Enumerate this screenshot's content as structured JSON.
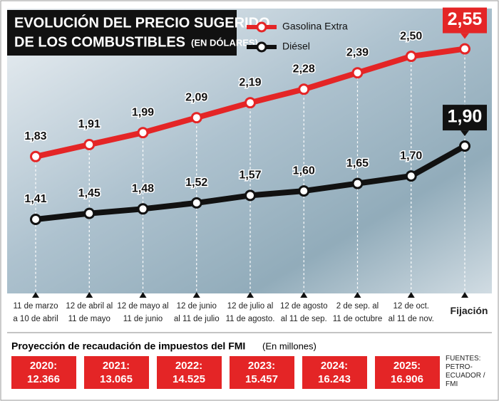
{
  "chart_data": {
    "type": "line",
    "title": "EVOLUCIÓN DEL PRECIO SUGERIDO",
    "title_line2": "DE LOS COMBUSTIBLES",
    "title_note": "(EN DÓLARES)",
    "categories": [
      "11 de marzo\na 10 de abril",
      "12 de abril al\n11 de mayo",
      "12 de mayo al\n11 de junio",
      "12 de junio\nal 11 de julio",
      "12 de julio al\n11 de agosto.",
      "12 de agosto\nal 11 de sep.",
      "2 de sep. al\n11 de octubre",
      "12 de oct.\nal 11 de nov.",
      "Fijación"
    ],
    "series": [
      {
        "name": "Gasolina Extra",
        "color": "#e42526",
        "values": [
          1.83,
          1.91,
          1.99,
          2.09,
          2.19,
          2.28,
          2.39,
          2.5,
          2.55
        ],
        "value_labels": [
          "1,83",
          "1,91",
          "1,99",
          "2,09",
          "2,19",
          "2,28",
          "2,39",
          "2,50",
          "2,55"
        ]
      },
      {
        "name": "Diésel",
        "color": "#111111",
        "values": [
          1.41,
          1.45,
          1.48,
          1.52,
          1.57,
          1.6,
          1.65,
          1.7,
          1.9
        ],
        "value_labels": [
          "1,41",
          "1,45",
          "1,48",
          "1,52",
          "1,57",
          "1,60",
          "1,65",
          "1,70",
          "1,90"
        ]
      }
    ]
  },
  "projection": {
    "title": "Proyección de recaudación de impuestos del FMI",
    "note": "(En millones)",
    "items": [
      {
        "year": "2020:",
        "value": "12.366"
      },
      {
        "year": "2021:",
        "value": "13.065"
      },
      {
        "year": "2022:",
        "value": "14.525"
      },
      {
        "year": "2023:",
        "value": "15.457"
      },
      {
        "year": "2024:",
        "value": "16.243"
      },
      {
        "year": "2025:",
        "value": "16.906"
      }
    ],
    "sources": "FUENTES:\nPETRO-\nECUADOR /\nFMI"
  }
}
